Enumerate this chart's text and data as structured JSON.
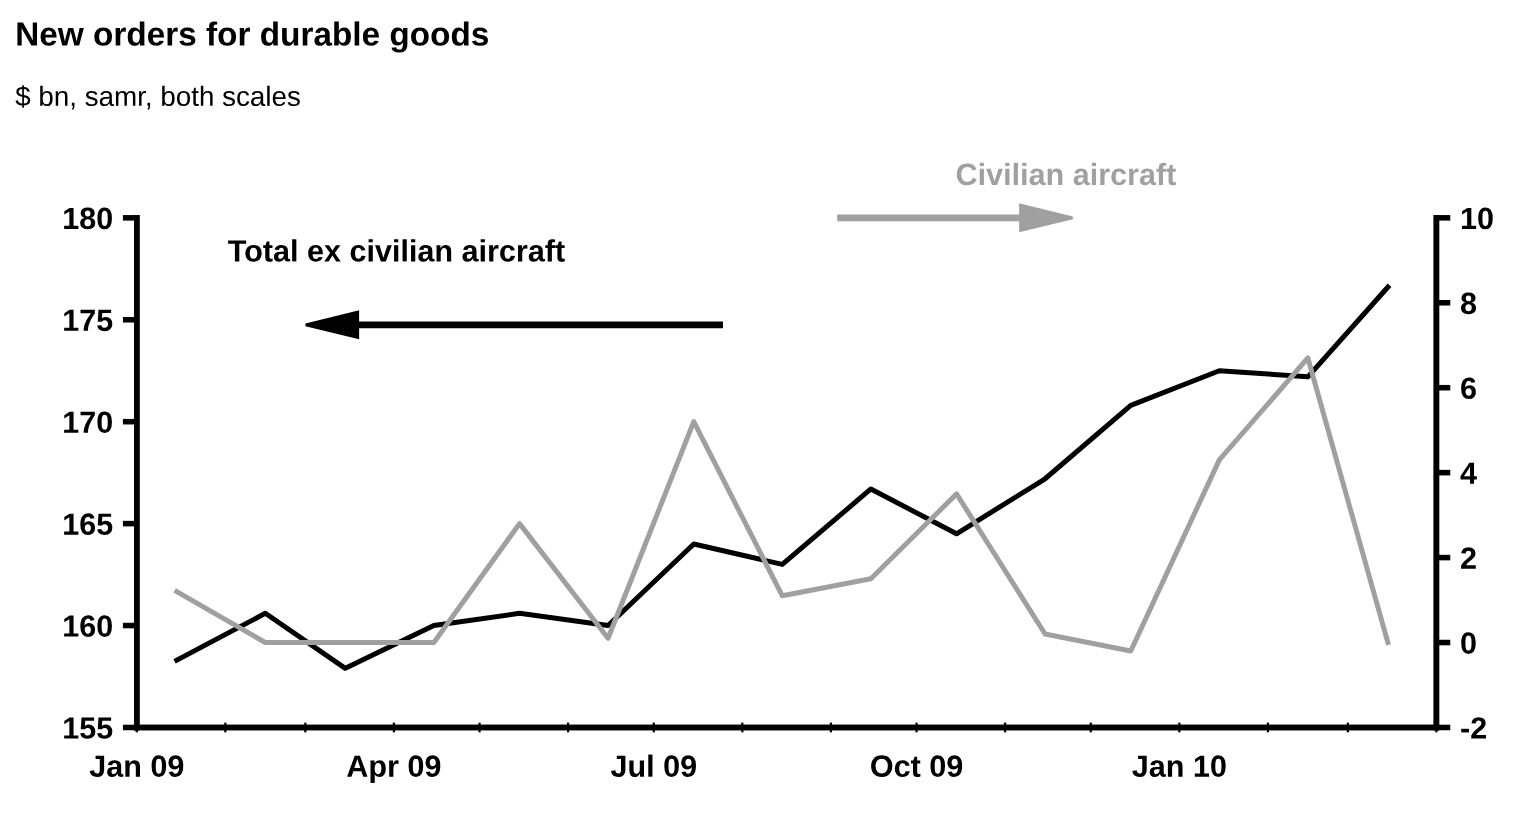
{
  "chart_data": {
    "type": "line",
    "title": "New orders for durable goods",
    "subtitle": "$ bn, samr, both scales",
    "x": [
      "2009-01-15",
      "2009-02-15",
      "2009-03-15",
      "2009-04-15",
      "2009-05-15",
      "2009-06-15",
      "2009-07-15",
      "2009-08-15",
      "2009-09-15",
      "2009-10-15",
      "2009-11-15",
      "2009-12-15",
      "2010-01-15",
      "2010-02-15",
      "2010-03-15"
    ],
    "series": [
      {
        "name": "Total ex civilian aircraft",
        "color": "#000000",
        "values": [
          158.3,
          160.6,
          157.9,
          160.0,
          160.6,
          160.0,
          164.0,
          163.0,
          166.7,
          164.5,
          167.2,
          170.8,
          172.5,
          172.2,
          176.6
        ]
      },
      {
        "name": "Civilian aircraft",
        "color": "#a0a0a0",
        "axis": "y2",
        "values": [
          1.2,
          0.0,
          0.0,
          0.0,
          2.8,
          0.1,
          5.2,
          1.1,
          1.5,
          3.5,
          0.2,
          -0.2,
          4.3,
          6.7,
          0.0
        ]
      }
    ],
    "xlim": [
      "2009-01-01",
      "2010-04-01"
    ],
    "xticks": [
      {
        "value": "2009-01-01",
        "label": "Jan 09"
      },
      {
        "value": "2009-02-01",
        "label": null
      },
      {
        "value": "2009-03-01",
        "label": null
      },
      {
        "value": "2009-04-01",
        "label": "Apr 09"
      },
      {
        "value": "2009-05-01",
        "label": null
      },
      {
        "value": "2009-06-01",
        "label": null
      },
      {
        "value": "2009-07-01",
        "label": "Jul 09"
      },
      {
        "value": "2009-08-01",
        "label": null
      },
      {
        "value": "2009-09-01",
        "label": null
      },
      {
        "value": "2009-10-01",
        "label": "Oct 09"
      },
      {
        "value": "2009-11-01",
        "label": null
      },
      {
        "value": "2009-12-01",
        "label": null
      },
      {
        "value": "2010-01-01",
        "label": "Jan 10"
      },
      {
        "value": "2010-02-01",
        "label": null
      },
      {
        "value": "2010-03-01",
        "label": null
      },
      {
        "value": "2010-04-01",
        "label": null
      }
    ],
    "ylim": [
      155,
      180
    ],
    "yticks": [
      155,
      160,
      165,
      170,
      175,
      180
    ],
    "y2lim": [
      -2,
      10
    ],
    "y2ticks": [
      -2,
      0,
      2,
      4,
      6,
      8,
      10
    ],
    "grid": false,
    "legend": false
  }
}
